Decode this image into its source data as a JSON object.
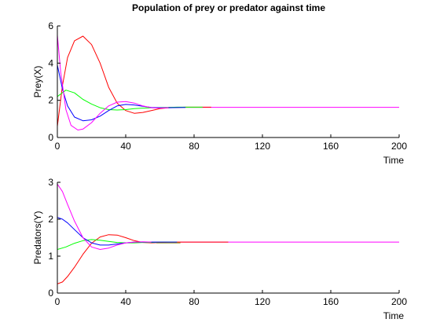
{
  "chart_data": [
    {
      "type": "line",
      "title": "Population of prey or predator against time",
      "xlabel": "Time",
      "ylabel": "Prey(X)",
      "xlim": [
        0,
        200
      ],
      "ylim": [
        0,
        6
      ],
      "xticks": [
        0,
        40,
        80,
        120,
        160,
        200
      ],
      "yticks": [
        0,
        2,
        4,
        6
      ],
      "grid": false,
      "series": [
        {
          "color": "#ff0000",
          "x": [
            0,
            3,
            6,
            10,
            15,
            20,
            25,
            30,
            35,
            40,
            45,
            50,
            55,
            60,
            65,
            70,
            75,
            80,
            85,
            90
          ],
          "values": [
            0.6,
            2.8,
            4.3,
            5.2,
            5.45,
            5.0,
            4.0,
            2.7,
            1.85,
            1.45,
            1.3,
            1.35,
            1.45,
            1.55,
            1.6,
            1.62,
            1.63,
            1.63,
            1.63,
            1.63
          ]
        },
        {
          "color": "#00ff00",
          "x": [
            0,
            5,
            10,
            15,
            20,
            25,
            30,
            35,
            40,
            45,
            50,
            55,
            60,
            65,
            70,
            75,
            80,
            85
          ],
          "values": [
            2.2,
            2.55,
            2.4,
            2.05,
            1.8,
            1.6,
            1.5,
            1.48,
            1.5,
            1.55,
            1.58,
            1.6,
            1.61,
            1.62,
            1.63,
            1.63,
            1.63,
            1.63
          ]
        },
        {
          "color": "#0000ff",
          "x": [
            0,
            3,
            6,
            10,
            15,
            20,
            25,
            30,
            35,
            40,
            45,
            50,
            55,
            60,
            65,
            70,
            75
          ],
          "values": [
            3.9,
            2.6,
            1.7,
            1.1,
            0.9,
            0.95,
            1.15,
            1.45,
            1.7,
            1.78,
            1.75,
            1.68,
            1.62,
            1.6,
            1.6,
            1.61,
            1.62
          ]
        },
        {
          "color": "#ff00ff",
          "x": [
            0,
            2,
            5,
            8,
            12,
            15,
            20,
            25,
            30,
            35,
            40,
            45,
            50,
            55,
            60,
            65
          ],
          "values": [
            5.5,
            3.5,
            1.5,
            0.65,
            0.4,
            0.45,
            0.8,
            1.3,
            1.7,
            1.9,
            1.93,
            1.85,
            1.7,
            1.6,
            1.58,
            1.6
          ]
        }
      ],
      "tail": {
        "color": "#ff00ff",
        "from": 65,
        "to": 200,
        "value": 1.62
      }
    },
    {
      "type": "line",
      "title": "",
      "xlabel": "Time",
      "ylabel": "Predators(Y)",
      "xlim": [
        0,
        200
      ],
      "ylim": [
        0,
        3
      ],
      "xticks": [
        0,
        40,
        80,
        120,
        160,
        200
      ],
      "yticks": [
        0,
        1,
        2,
        3
      ],
      "grid": false,
      "series": [
        {
          "color": "#ff0000",
          "x": [
            0,
            3,
            6,
            10,
            15,
            20,
            25,
            30,
            35,
            40,
            45,
            50,
            55,
            60,
            65,
            70,
            80,
            90,
            100
          ],
          "values": [
            0.25,
            0.3,
            0.45,
            0.7,
            1.05,
            1.35,
            1.52,
            1.58,
            1.57,
            1.5,
            1.42,
            1.37,
            1.36,
            1.37,
            1.38,
            1.38,
            1.38,
            1.38,
            1.38
          ]
        },
        {
          "color": "#00ff00",
          "x": [
            0,
            5,
            10,
            15,
            20,
            25,
            30,
            35,
            40,
            45,
            50,
            55,
            60,
            65,
            70
          ],
          "values": [
            1.18,
            1.25,
            1.35,
            1.42,
            1.45,
            1.43,
            1.4,
            1.37,
            1.36,
            1.36,
            1.37,
            1.37,
            1.38,
            1.38,
            1.38
          ]
        },
        {
          "color": "#0000ff",
          "x": [
            0,
            3,
            6,
            10,
            15,
            20,
            25,
            30,
            35,
            40,
            45,
            50,
            55,
            60,
            65,
            70
          ],
          "values": [
            2.05,
            2.0,
            1.9,
            1.72,
            1.5,
            1.36,
            1.3,
            1.3,
            1.33,
            1.36,
            1.38,
            1.38,
            1.38,
            1.38,
            1.38,
            1.38
          ]
        },
        {
          "color": "#ff00ff",
          "x": [
            0,
            3,
            6,
            10,
            15,
            20,
            25,
            30,
            35,
            40,
            45,
            50,
            55
          ],
          "values": [
            2.95,
            2.75,
            2.4,
            1.95,
            1.5,
            1.25,
            1.18,
            1.22,
            1.3,
            1.36,
            1.38,
            1.39,
            1.38
          ]
        },
        {
          "color": "#808000",
          "x": [
            58,
            72
          ],
          "values": [
            1.36,
            1.36
          ]
        }
      ],
      "tail": {
        "color": "#ff00ff",
        "from": 55,
        "to": 200,
        "value": 1.38
      }
    }
  ]
}
